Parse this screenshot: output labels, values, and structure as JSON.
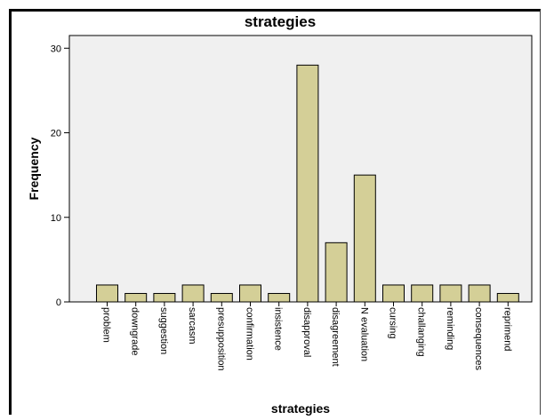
{
  "chart_data": {
    "type": "bar",
    "title": "strategies",
    "xlabel": "strategies",
    "ylabel": "Frequency",
    "categories": [
      "problem",
      "downgrade",
      "suggestion",
      "sarcasm",
      "presupposition",
      "confirmation",
      "insistence",
      "disapproval",
      "disagreement",
      "N evaluation",
      "cursing",
      "challanging",
      "reminding",
      "consequences",
      "reprimend"
    ],
    "values": [
      2,
      1,
      1,
      2,
      1,
      2,
      1,
      28,
      7,
      15,
      2,
      2,
      2,
      2,
      1
    ],
    "yticks": [
      0,
      10,
      20,
      30
    ],
    "ylim": [
      0,
      31.5
    ],
    "grid": false,
    "colors": {
      "bar_fill": "#d4cf97",
      "bar_stroke": "#000000",
      "plot_bg": "#f0f0f0"
    }
  }
}
